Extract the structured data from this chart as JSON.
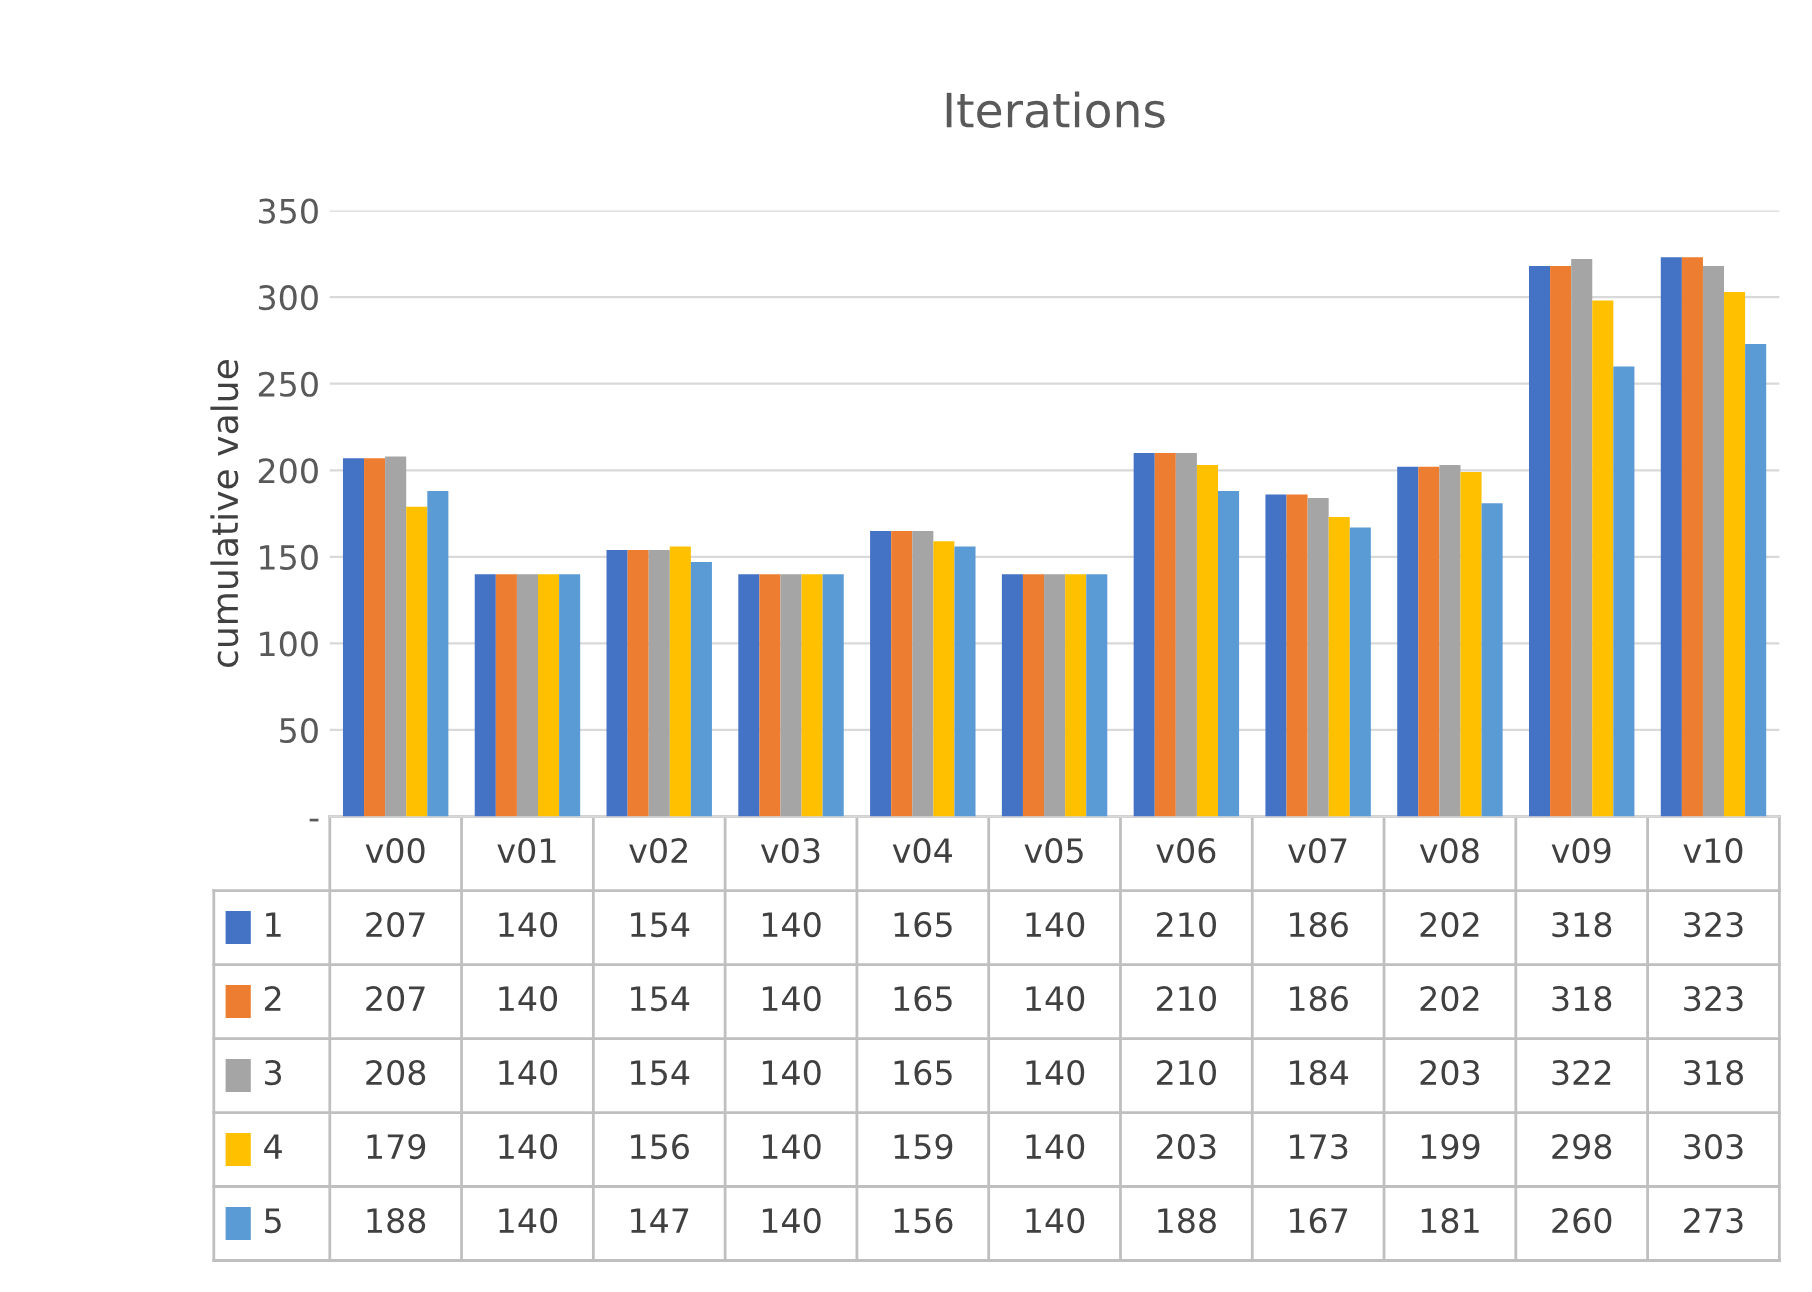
{
  "chart_data": {
    "type": "bar",
    "title": "Iterations",
    "ylabel": "cumulative value",
    "categories": [
      "v00",
      "v01",
      "v02",
      "v03",
      "v04",
      "v05",
      "v06",
      "v07",
      "v08",
      "v09",
      "v10"
    ],
    "series": [
      {
        "name": "1",
        "color": "#4472c4",
        "values": [
          207,
          140,
          154,
          140,
          165,
          140,
          210,
          186,
          202,
          318,
          323
        ]
      },
      {
        "name": "2",
        "color": "#ed7d31",
        "values": [
          207,
          140,
          154,
          140,
          165,
          140,
          210,
          186,
          202,
          318,
          323
        ]
      },
      {
        "name": "3",
        "color": "#a5a5a5",
        "values": [
          208,
          140,
          154,
          140,
          165,
          140,
          210,
          184,
          203,
          322,
          318
        ]
      },
      {
        "name": "4",
        "color": "#ffc000",
        "values": [
          179,
          140,
          156,
          140,
          159,
          140,
          203,
          173,
          199,
          298,
          303
        ]
      },
      {
        "name": "5",
        "color": "#5b9bd5",
        "values": [
          188,
          140,
          147,
          140,
          156,
          140,
          188,
          167,
          181,
          260,
          273
        ]
      }
    ],
    "ylim": [
      0,
      350
    ],
    "yticks": [
      {
        "value": 0,
        "label": "-"
      },
      50,
      100,
      150,
      200,
      250,
      300,
      350
    ],
    "grid": "y",
    "data_labels": true,
    "legend": "bottom"
  }
}
